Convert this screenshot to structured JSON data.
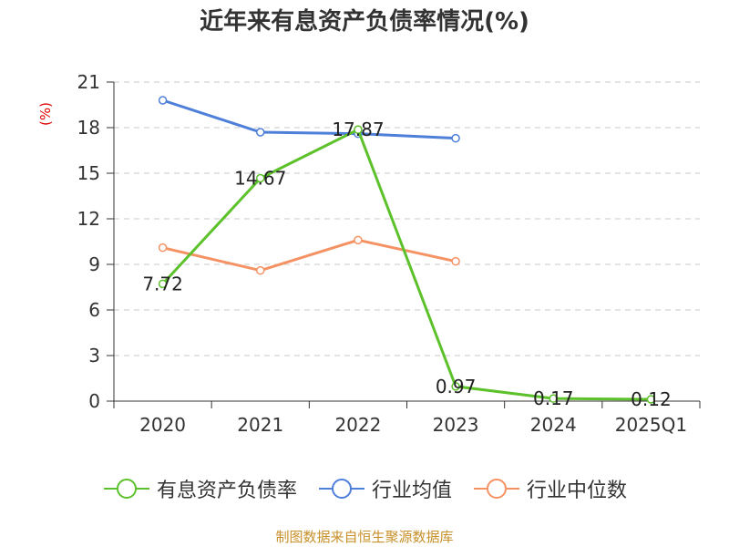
{
  "chart_data": {
    "type": "line",
    "title": "近年来有息资产负债率情况(%)",
    "ylabel": "(%)",
    "categories": [
      "2020",
      "2021",
      "2022",
      "2023",
      "2024",
      "2025Q1"
    ],
    "ylim": [
      0,
      21
    ],
    "yticks": [
      0,
      3,
      6,
      9,
      12,
      15,
      18,
      21
    ],
    "grid": true,
    "legend_position": "bottom",
    "series": [
      {
        "name": "有息资产负债率",
        "color": "#5cc12a",
        "values": [
          7.72,
          14.67,
          17.87,
          0.97,
          0.17,
          0.12
        ],
        "labels": [
          "7.72",
          "14.67",
          "17.87",
          "0.97",
          "0.17",
          "0.12"
        ]
      },
      {
        "name": "行业均值",
        "color": "#4e7fd9",
        "values": [
          19.8,
          17.7,
          17.6,
          17.3,
          null,
          null
        ]
      },
      {
        "name": "行业中位数",
        "color": "#f59263",
        "values": [
          10.1,
          8.6,
          10.6,
          9.2,
          null,
          null
        ]
      }
    ]
  },
  "source": "制图数据来自恒生聚源数据库"
}
